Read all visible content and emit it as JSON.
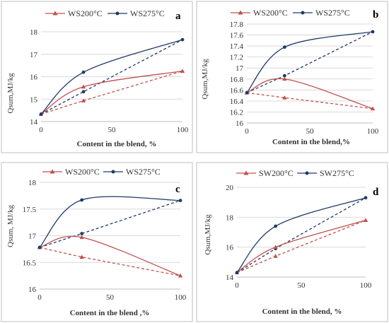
{
  "colors": {
    "red": "#c0504d",
    "blue": "#1f3a68"
  },
  "chart_data": [
    {
      "type": "line",
      "panel_label": "a",
      "xlabel": "Content in the blend, %",
      "ylabel": "Qsum,MJ/kg",
      "xlim": [
        0,
        100
      ],
      "ylim": [
        14,
        18
      ],
      "xticks": [
        "0",
        "50",
        "100"
      ],
      "yticks": [
        "14",
        "15",
        "16",
        "17",
        "18"
      ],
      "legend": [
        "WS200°C",
        "WS275°C"
      ],
      "series": [
        {
          "name": "WS200°C",
          "style": "solid",
          "x": [
            0,
            30,
            100
          ],
          "y": [
            14.33,
            15.55,
            16.25
          ]
        },
        {
          "name": "WS275°C",
          "style": "solid",
          "x": [
            0,
            30,
            100
          ],
          "y": [
            14.33,
            16.2,
            17.65
          ]
        },
        {
          "style": "dashed",
          "color_of": "WS200°C",
          "x": [
            0,
            30,
            100
          ],
          "y": [
            14.33,
            14.93,
            16.25
          ]
        },
        {
          "style": "dashed",
          "color_of": "WS275°C",
          "x": [
            0,
            30,
            100
          ],
          "y": [
            14.33,
            15.33,
            17.65
          ]
        }
      ]
    },
    {
      "type": "line",
      "panel_label": "b",
      "xlabel": "Content in the blend,%",
      "ylabel": "Qsum,MJ/kg",
      "xlim": [
        0,
        100
      ],
      "ylim": [
        16,
        17.8
      ],
      "xticks": [
        "0",
        "50",
        "100"
      ],
      "yticks": [
        "16",
        "16.2",
        "16.4",
        "16.6",
        "16.8",
        "17",
        "17.2",
        "17.4",
        "17.6",
        "17.8"
      ],
      "legend": [
        "WS200°C",
        "WS275°C"
      ],
      "series": [
        {
          "name": "WS200°C",
          "style": "solid",
          "x": [
            0,
            30,
            100
          ],
          "y": [
            16.55,
            16.8,
            16.26
          ]
        },
        {
          "name": "WS275°C",
          "style": "solid",
          "x": [
            0,
            30,
            100
          ],
          "y": [
            16.55,
            17.38,
            17.66
          ]
        },
        {
          "style": "dashed",
          "color_of": "WS200°C",
          "x": [
            0,
            30,
            100
          ],
          "y": [
            16.55,
            16.46,
            16.26
          ]
        },
        {
          "style": "dashed",
          "color_of": "WS275°C",
          "x": [
            0,
            30,
            100
          ],
          "y": [
            16.55,
            16.86,
            17.66
          ]
        }
      ]
    },
    {
      "type": "line",
      "panel_label": "c",
      "xlabel": "Content in the blend ,%",
      "ylabel": "Qsum, MJ/kg",
      "xlim": [
        0,
        100
      ],
      "ylim": [
        16,
        18
      ],
      "xticks": [
        "0",
        "50",
        "100"
      ],
      "yticks": [
        "16",
        "16.5",
        "17",
        "17.5",
        "18"
      ],
      "legend": [
        "WS200°C",
        "WS275°C"
      ],
      "series": [
        {
          "name": "WS200°C",
          "style": "solid",
          "x": [
            0,
            30,
            100
          ],
          "y": [
            16.78,
            16.97,
            16.25
          ]
        },
        {
          "name": "WS275°C",
          "style": "solid",
          "x": [
            0,
            30,
            100
          ],
          "y": [
            16.78,
            17.67,
            17.66
          ]
        },
        {
          "style": "dashed",
          "color_of": "WS200°C",
          "x": [
            0,
            30,
            100
          ],
          "y": [
            16.78,
            16.6,
            16.25
          ]
        },
        {
          "style": "dashed",
          "color_of": "WS275°C",
          "x": [
            0,
            30,
            100
          ],
          "y": [
            16.78,
            17.04,
            17.66
          ]
        }
      ]
    },
    {
      "type": "line",
      "panel_label": "d",
      "xlabel": "Content in the blend, %",
      "ylabel": "Qsum,MJ/kg",
      "xlim": [
        0,
        100
      ],
      "ylim": [
        14,
        20
      ],
      "xticks": [
        "0",
        "50",
        "100"
      ],
      "yticks": [
        "14",
        "16",
        "18",
        "20"
      ],
      "legend": [
        "SW200°C",
        "SW275°C"
      ],
      "series": [
        {
          "name": "SW200°C",
          "style": "solid",
          "x": [
            0,
            30,
            100
          ],
          "y": [
            14.3,
            16.0,
            17.8
          ]
        },
        {
          "name": "SW275°C",
          "style": "solid",
          "x": [
            0,
            30,
            100
          ],
          "y": [
            14.3,
            17.4,
            19.3
          ]
        },
        {
          "style": "dashed",
          "color_of": "SW200°C",
          "x": [
            0,
            30,
            100
          ],
          "y": [
            14.3,
            15.4,
            17.8
          ]
        },
        {
          "style": "dashed",
          "color_of": "SW275°C",
          "x": [
            0,
            30,
            100
          ],
          "y": [
            14.3,
            15.9,
            19.3
          ]
        }
      ]
    }
  ]
}
